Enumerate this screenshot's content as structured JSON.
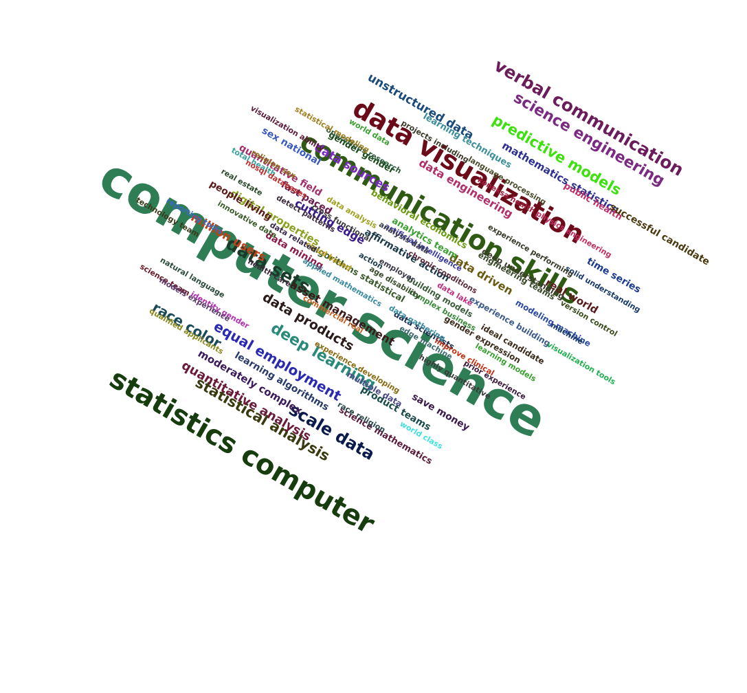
{
  "words": [
    {
      "text": "computer science",
      "color": "#2e7d55"
    },
    {
      "text": "communication skills",
      "color": "#2f5a14"
    },
    {
      "text": "data visualization",
      "color": "#6b0b1a"
    },
    {
      "text": "statistics computer",
      "color": "#173d0f"
    },
    {
      "text": "verbal communication",
      "color": "#6a1d5a"
    },
    {
      "text": "science engineering",
      "color": "#7a2a80"
    },
    {
      "text": "predictive models",
      "color": "#3ee010"
    },
    {
      "text": "unstructured data",
      "color": "#1a4a7a"
    },
    {
      "text": "mathematics statistics",
      "color": "#2d2f8f"
    },
    {
      "text": "learning techniques",
      "color": "#3a8f9a"
    },
    {
      "text": "data engineering",
      "color": "#b0306a"
    },
    {
      "text": "data sources",
      "color": "#7a2ac0"
    },
    {
      "text": "behavioral economics",
      "color": "#6a9a10"
    },
    {
      "text": "data driven",
      "color": "#6a5a10"
    },
    {
      "text": "real world",
      "color": "#5a1a1a"
    },
    {
      "text": "public health",
      "color": "#c0306a"
    },
    {
      "text": "successful candidate",
      "color": "#4a3a10"
    },
    {
      "text": "time series",
      "color": "#1a3a8f"
    },
    {
      "text": "data sets",
      "color": "#1a3a2a"
    },
    {
      "text": "data products",
      "color": "#2a1a1a"
    },
    {
      "text": "deep learning",
      "color": "#2a8a7a"
    },
    {
      "text": "equal employment",
      "color": "#2a2ab0"
    },
    {
      "text": "race color",
      "color": "#1a4a5a"
    },
    {
      "text": "scale data",
      "color": "#0a1a4a"
    },
    {
      "text": "statistical analysis",
      "color": "#3a3a10"
    },
    {
      "text": "quantitative analysis",
      "color": "#6a1a3a"
    },
    {
      "text": "moderately complex",
      "color": "#3a1a5a"
    },
    {
      "text": "learning algorithms",
      "color": "#2a3a6a"
    },
    {
      "text": "science mathematics",
      "color": "#5a1a3a"
    },
    {
      "text": "product teams",
      "color": "#1a4a4a"
    },
    {
      "text": "save money",
      "color": "#3a1a4a"
    },
    {
      "text": "world class",
      "color": "#40e0e0"
    },
    {
      "text": "multiple data",
      "color": "#4a4a8a"
    },
    {
      "text": "race religion",
      "color": "#2a4a4a"
    },
    {
      "text": "asset management",
      "color": "#3a1a1a"
    },
    {
      "text": "algorithms statistical",
      "color": "#3a5a2a"
    },
    {
      "text": "data mining",
      "color": "#8a1a4a"
    },
    {
      "text": "million users",
      "color": "#c0401a"
    },
    {
      "text": "cutting edge",
      "color": "#3a1a8a"
    },
    {
      "text": "digital properties",
      "color": "#8aa020"
    },
    {
      "text": "people living",
      "color": "#5a1a1a"
    },
    {
      "text": "fast paced",
      "color": "#6a1a4a"
    },
    {
      "text": "quantitative field",
      "color": "#a0306a"
    },
    {
      "text": "sex national",
      "color": "#3a5ac0"
    },
    {
      "text": "gender gender",
      "color": "#1a4a1a"
    },
    {
      "text": "analytics team",
      "color": "#3aa030"
    },
    {
      "text": "affirmative action",
      "color": "#1a3a4a"
    },
    {
      "text": "data scientists",
      "color": "#1a2a4a"
    },
    {
      "text": "building models",
      "color": "#3a5a3a"
    },
    {
      "text": "gender expression",
      "color": "#3a2a1a"
    },
    {
      "text": "experience building",
      "color": "#3a5a8a"
    },
    {
      "text": "modeling machine",
      "color": "#2a4aa0"
    },
    {
      "text": "ideal candidate",
      "color": "#3a2a1a"
    },
    {
      "text": "deep understanding",
      "color": "#3a3a2a"
    },
    {
      "text": "engineering teams",
      "color": "#3a4a2a"
    },
    {
      "text": "version control",
      "color": "#3a4a1a"
    },
    {
      "text": "solid understanding",
      "color": "#1a3a6a"
    },
    {
      "text": "experience performing",
      "color": "#3a3a2a"
    },
    {
      "text": "physics engineering",
      "color": "#c03060"
    },
    {
      "text": "koneksa health",
      "color": "#a02040"
    },
    {
      "text": "language processing",
      "color": "#4a4a2a"
    },
    {
      "text": "projects including",
      "color": "#3a3a2a"
    },
    {
      "text": "operations research",
      "color": "#2a5a3a"
    },
    {
      "text": "world data",
      "color": "#3aa030"
    },
    {
      "text": "statistical modeling",
      "color": "#a08020"
    },
    {
      "text": "visualization ability",
      "color": "#5a1a3a"
    },
    {
      "text": "religion sex",
      "color": "#8a6a1a"
    },
    {
      "text": "total health",
      "color": "#3aa0a0"
    },
    {
      "text": "nosql databases",
      "color": "#c03030"
    },
    {
      "text": "real estate",
      "color": "#2a4a2a"
    },
    {
      "text": "detect patterns",
      "color": "#3a2a3a"
    },
    {
      "text": "cross functional",
      "color": "#3a3a3a"
    },
    {
      "text": "data analysis",
      "color": "#a0a020"
    },
    {
      "text": "artificial intelligence",
      "color": "#3a3aa0"
    },
    {
      "text": "analysis data",
      "color": "#3a3a4a"
    },
    {
      "text": "chronic conditions",
      "color": "#5a2a3a"
    },
    {
      "text": "data lake",
      "color": "#c03080"
    },
    {
      "text": "complex business",
      "color": "#3a8a3a"
    },
    {
      "text": "employer",
      "color": "#3a3a4a"
    },
    {
      "text": "age disability",
      "color": "#3a4a2a"
    },
    {
      "text": "action",
      "color": "#1a3a4a"
    },
    {
      "text": "cloud based",
      "color": "#c0a020"
    },
    {
      "text": "data related",
      "color": "#3a2a4a"
    },
    {
      "text": "innovative data",
      "color": "#3a5a2a"
    },
    {
      "text": "reporting tools",
      "color": "#3a6ac0"
    },
    {
      "text": "technology team",
      "color": "#3a3a1a"
    },
    {
      "text": "health care",
      "color": "#3a2a3a"
    },
    {
      "text": "applied mathematics",
      "color": "#3a8aa0"
    },
    {
      "text": "natural language",
      "color": "#2a4a3a"
    },
    {
      "text": "science team",
      "color": "#6a1a2a"
    },
    {
      "text": "identity gender",
      "color": "#b030b0"
    },
    {
      "text": "models experience",
      "color": "#5a3a6a"
    },
    {
      "text": "qualified applicants",
      "color": "#8a8a20"
    },
    {
      "text": "commercial real",
      "color": "#c06020"
    },
    {
      "text": "experience developing",
      "color": "#8a6a10"
    },
    {
      "text": "data gathering",
      "color": "#3a8aa0"
    },
    {
      "text": "edge machine",
      "color": "#3a6a6a"
    },
    {
      "text": "highly quantitative",
      "color": "#3a3a3a"
    },
    {
      "text": "improve clinical",
      "color": "#c03010"
    },
    {
      "text": "learning models",
      "color": "#3aa030"
    },
    {
      "text": "prior experience",
      "color": "#3a1a3a"
    },
    {
      "text": "visualization tools",
      "color": "#20b050"
    },
    {
      "text": "machine",
      "color": "#1a3a6a"
    }
  ]
}
